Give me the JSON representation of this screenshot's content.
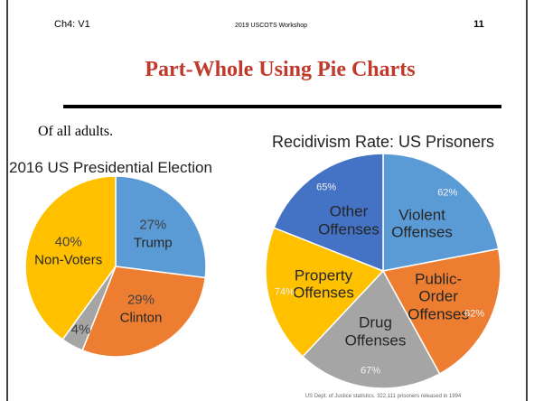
{
  "header": {
    "left": "Ch4: V1",
    "center": "2019 USCOTS Workshop",
    "page": "11",
    "title": "Part-Whole Using Pie Charts"
  },
  "note": "Of all adults.",
  "chart_data": [
    {
      "type": "pie",
      "title": "2016 US Presidential Election",
      "categories": [
        "Trump",
        "Clinton",
        null,
        "Non-Voters"
      ],
      "values": [
        27,
        29,
        4,
        40
      ],
      "value_labels": [
        "27%",
        "29%",
        "4%",
        "40%"
      ],
      "colors": [
        "#5b9bd5",
        "#ed7d31",
        "#a5a5a5",
        "#ffc000"
      ]
    },
    {
      "type": "pie",
      "title": "Recidivism Rate: US Prisoners",
      "categories": [
        "Violent Offenses",
        "Public-Order Offenses",
        "Drug Offenses",
        "Property Offenses",
        "Other Offenses"
      ],
      "values": [
        22,
        20,
        20,
        19,
        19
      ],
      "rates": [
        {
          "value": 62,
          "label": "62%"
        },
        {
          "value": 62,
          "label": "62%"
        },
        {
          "value": 67,
          "label": "67%"
        },
        {
          "value": 74,
          "label": "74%"
        },
        {
          "value": 65,
          "label": "65%"
        }
      ],
      "colors": [
        "#5b9bd5",
        "#ed7d31",
        "#a5a5a5",
        "#ffc000",
        "#4472c4"
      ]
    }
  ],
  "footer": "US Dept. of Justice statistics. 322,111 prisoners released in 1994"
}
